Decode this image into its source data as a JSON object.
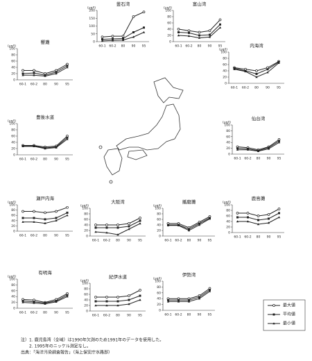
{
  "chart_data": [
    {
      "type": "line",
      "title": "釜石湾",
      "y_label": "(μg/l)",
      "categories": [
        "60-1",
        "60-2",
        "80",
        "90",
        "95"
      ],
      "ylim": [
        0,
        200
      ],
      "yticks": [
        0,
        50,
        100,
        150,
        200
      ],
      "series": [
        {
          "color": "#222",
          "values": [
            30,
            35,
            35,
            160,
            190
          ]
        },
        {
          "color": "#222",
          "values": [
            15,
            18,
            20,
            60,
            90
          ]
        },
        {
          "color": "#222",
          "values": [
            5,
            8,
            10,
            30,
            60
          ]
        }
      ]
    },
    {
      "type": "line",
      "title": "富山湾",
      "y_label": "(μg/l)",
      "categories": [
        "60-1",
        "60-2",
        "80",
        "90",
        "95"
      ],
      "ylim": [
        0,
        100
      ],
      "yticks": [
        0,
        20,
        40,
        60,
        80,
        100
      ],
      "series": [
        {
          "color": "#222",
          "values": [
            40,
            35,
            30,
            35,
            70
          ]
        },
        {
          "color": "#222",
          "values": [
            30,
            28,
            20,
            22,
            55
          ]
        },
        {
          "color": "#222",
          "values": [
            20,
            18,
            12,
            15,
            45
          ]
        }
      ]
    },
    {
      "type": "line",
      "title": "響灘",
      "y_label": "(μg/l)",
      "categories": [
        "60-1",
        "60-2",
        "80",
        "90",
        "95"
      ],
      "ylim": [
        0,
        100
      ],
      "yticks": [
        0,
        20,
        40,
        60,
        80,
        100
      ],
      "series": [
        {
          "color": "#222",
          "values": [
            30,
            30,
            20,
            30,
            50
          ]
        },
        {
          "color": "#222",
          "values": [
            20,
            22,
            15,
            25,
            45
          ]
        },
        {
          "color": "#222",
          "values": [
            15,
            15,
            12,
            20,
            40
          ]
        }
      ]
    },
    {
      "type": "line",
      "title": "内海湾",
      "y_label": "(μg/l)",
      "categories": [
        "60-1",
        "60-2",
        "80",
        "90",
        "95"
      ],
      "ylim": [
        0,
        100
      ],
      "yticks": [
        0,
        20,
        40,
        60,
        80,
        100
      ],
      "series": [
        {
          "color": "#222",
          "values": [
            50,
            45,
            40,
            50,
            70
          ]
        },
        {
          "color": "#222",
          "values": [
            48,
            40,
            30,
            45,
            68
          ]
        },
        {
          "color": "#222",
          "values": [
            45,
            38,
            20,
            35,
            65
          ]
        }
      ]
    },
    {
      "type": "line",
      "title": "豊後水道",
      "y_label": "(μg/l)",
      "categories": [
        "60-1",
        "60-2",
        "80",
        "90",
        "95"
      ],
      "ylim": [
        0,
        100
      ],
      "yticks": [
        0,
        20,
        40,
        60,
        80,
        100
      ],
      "series": [
        {
          "color": "#222",
          "values": [
            30,
            30,
            25,
            28,
            60
          ]
        },
        {
          "color": "#222",
          "values": [
            28,
            28,
            22,
            25,
            55
          ]
        },
        {
          "color": "#222",
          "values": [
            27,
            27,
            20,
            23,
            50
          ]
        }
      ]
    },
    {
      "type": "line",
      "title": "仙台湾",
      "y_label": "(μg/l)",
      "categories": [
        "60-1",
        "60-2",
        "80",
        "90",
        "95"
      ],
      "ylim": [
        0,
        100
      ],
      "yticks": [
        0,
        20,
        40,
        60,
        80,
        100
      ],
      "series": [
        {
          "color": "#222",
          "values": [
            25,
            22,
            15,
            25,
            50
          ]
        },
        {
          "color": "#222",
          "values": [
            20,
            18,
            12,
            22,
            45
          ]
        },
        {
          "color": "#222",
          "values": [
            15,
            15,
            10,
            18,
            40
          ]
        }
      ]
    },
    {
      "type": "line",
      "title": "瀬戸内海",
      "y_label": "(μg/l)",
      "categories": [
        "60-1",
        "60-2",
        "80",
        "90",
        "95"
      ],
      "ylim": [
        0,
        100
      ],
      "yticks": [
        0,
        20,
        40,
        60,
        80,
        100
      ],
      "series": [
        {
          "color": "#222",
          "values": [
            75,
            75,
            70,
            75,
            90
          ]
        },
        {
          "color": "#222",
          "values": [
            50,
            50,
            45,
            50,
            70
          ]
        },
        {
          "color": "#222",
          "values": [
            35,
            35,
            30,
            40,
            60
          ]
        }
      ]
    },
    {
      "type": "line",
      "title": "大阪湾",
      "y_label": "(μg/l)",
      "categories": [
        "60-1",
        "60-2",
        "80",
        "90",
        "95"
      ],
      "ylim": [
        0,
        100
      ],
      "yticks": [
        0,
        20,
        40,
        60,
        80,
        100
      ],
      "series": [
        {
          "color": "#222",
          "values": [
            40,
            40,
            40,
            45,
            65
          ]
        },
        {
          "color": "#222",
          "values": [
            30,
            30,
            30,
            35,
            55
          ]
        },
        {
          "color": "#222",
          "values": [
            15,
            12,
            5,
            25,
            45
          ]
        }
      ]
    },
    {
      "type": "line",
      "title": "播磨灘",
      "y_label": "(μg/l)",
      "categories": [
        "60-1",
        "60-2",
        "80",
        "90",
        "95"
      ],
      "ylim": [
        0,
        100
      ],
      "yticks": [
        0,
        20,
        40,
        60,
        80,
        100
      ],
      "series": [
        {
          "color": "#222",
          "values": [
            45,
            45,
            30,
            50,
            70
          ]
        },
        {
          "color": "#222",
          "values": [
            40,
            40,
            25,
            45,
            65
          ]
        },
        {
          "color": "#222",
          "values": [
            38,
            38,
            20,
            40,
            62
          ]
        }
      ]
    },
    {
      "type": "line",
      "title": "鹿島灘",
      "y_label": "(μg/l)",
      "categories": [
        "60-1",
        "60-2",
        "80",
        "90",
        "95"
      ],
      "ylim": [
        0,
        100
      ],
      "yticks": [
        0,
        20,
        40,
        60,
        80,
        100
      ],
      "series": [
        {
          "color": "#222",
          "values": [
            70,
            70,
            60,
            65,
            85
          ]
        },
        {
          "color": "#222",
          "values": [
            55,
            55,
            45,
            50,
            70
          ]
        },
        {
          "color": "#222",
          "values": [
            40,
            40,
            30,
            35,
            55
          ]
        }
      ]
    },
    {
      "type": "line",
      "title": "有明海",
      "y_label": "(μg/l)",
      "categories": [
        "60-1",
        "60-2",
        "80",
        "90",
        "95"
      ],
      "ylim": [
        0,
        100
      ],
      "yticks": [
        0,
        20,
        40,
        60,
        80,
        100
      ],
      "series": [
        {
          "color": "#222",
          "values": [
            30,
            28,
            20,
            30,
            50
          ]
        },
        {
          "color": "#222",
          "values": [
            25,
            22,
            18,
            25,
            45
          ]
        },
        {
          "color": "#222",
          "values": [
            20,
            18,
            15,
            22,
            40
          ]
        }
      ]
    },
    {
      "type": "line",
      "title": "紀伊水道",
      "y_label": "(μg/l)",
      "categories": [
        "60-1",
        "60-2",
        "80",
        "90",
        "95"
      ],
      "ylim": [
        0,
        100
      ],
      "yticks": [
        0,
        20,
        40,
        60,
        80,
        100
      ],
      "series": [
        {
          "color": "#222",
          "values": [
            50,
            50,
            50,
            55,
            75
          ]
        },
        {
          "color": "#222",
          "values": [
            35,
            35,
            35,
            40,
            55
          ]
        },
        {
          "color": "#222",
          "values": [
            20,
            20,
            20,
            25,
            40
          ]
        }
      ]
    },
    {
      "type": "line",
      "title": "伊勢湾",
      "y_label": "(μg/l)",
      "categories": [
        "60-1",
        "60-2",
        "80",
        "90",
        "95"
      ],
      "ylim": [
        0,
        100
      ],
      "yticks": [
        0,
        20,
        40,
        60,
        80,
        100
      ],
      "series": [
        {
          "color": "#222",
          "values": [
            40,
            40,
            40,
            50,
            75
          ]
        },
        {
          "color": "#222",
          "values": [
            35,
            35,
            35,
            45,
            70
          ]
        },
        {
          "color": "#222",
          "values": [
            30,
            30,
            30,
            40,
            65
          ]
        }
      ]
    }
  ],
  "legend": [
    "最大値",
    "平均値",
    "最小値"
  ],
  "footnotes": [
    "注）1. 鹿児島湾（全域）は1990年欠測のため1991年のデータを使用した。",
    "2. 1995年のニッケル測定なし。"
  ],
  "source": "出典：「海洋汚染調査報告」（海上保安庁水路部）"
}
